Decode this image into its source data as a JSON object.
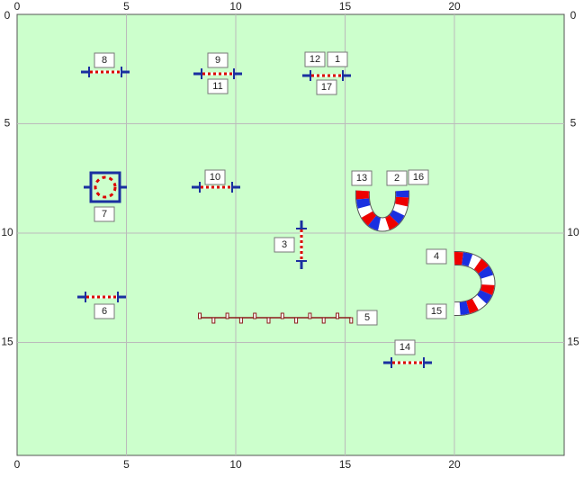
{
  "axes": {
    "x_ticks": [
      "0",
      "5",
      "10",
      "15",
      "20"
    ],
    "y_ticks": [
      "0",
      "5",
      "10",
      "15"
    ]
  },
  "obstacles": [
    {
      "label": "8"
    },
    {
      "label": "9"
    },
    {
      "label": "11"
    },
    {
      "label": "12"
    },
    {
      "label": "1"
    },
    {
      "label": "17"
    },
    {
      "label": "7"
    },
    {
      "label": "10"
    },
    {
      "label": "13"
    },
    {
      "label": "2"
    },
    {
      "label": "16"
    },
    {
      "label": "3"
    },
    {
      "label": "4"
    },
    {
      "label": "15"
    },
    {
      "label": "6"
    },
    {
      "label": "5"
    },
    {
      "label": "14"
    }
  ]
}
